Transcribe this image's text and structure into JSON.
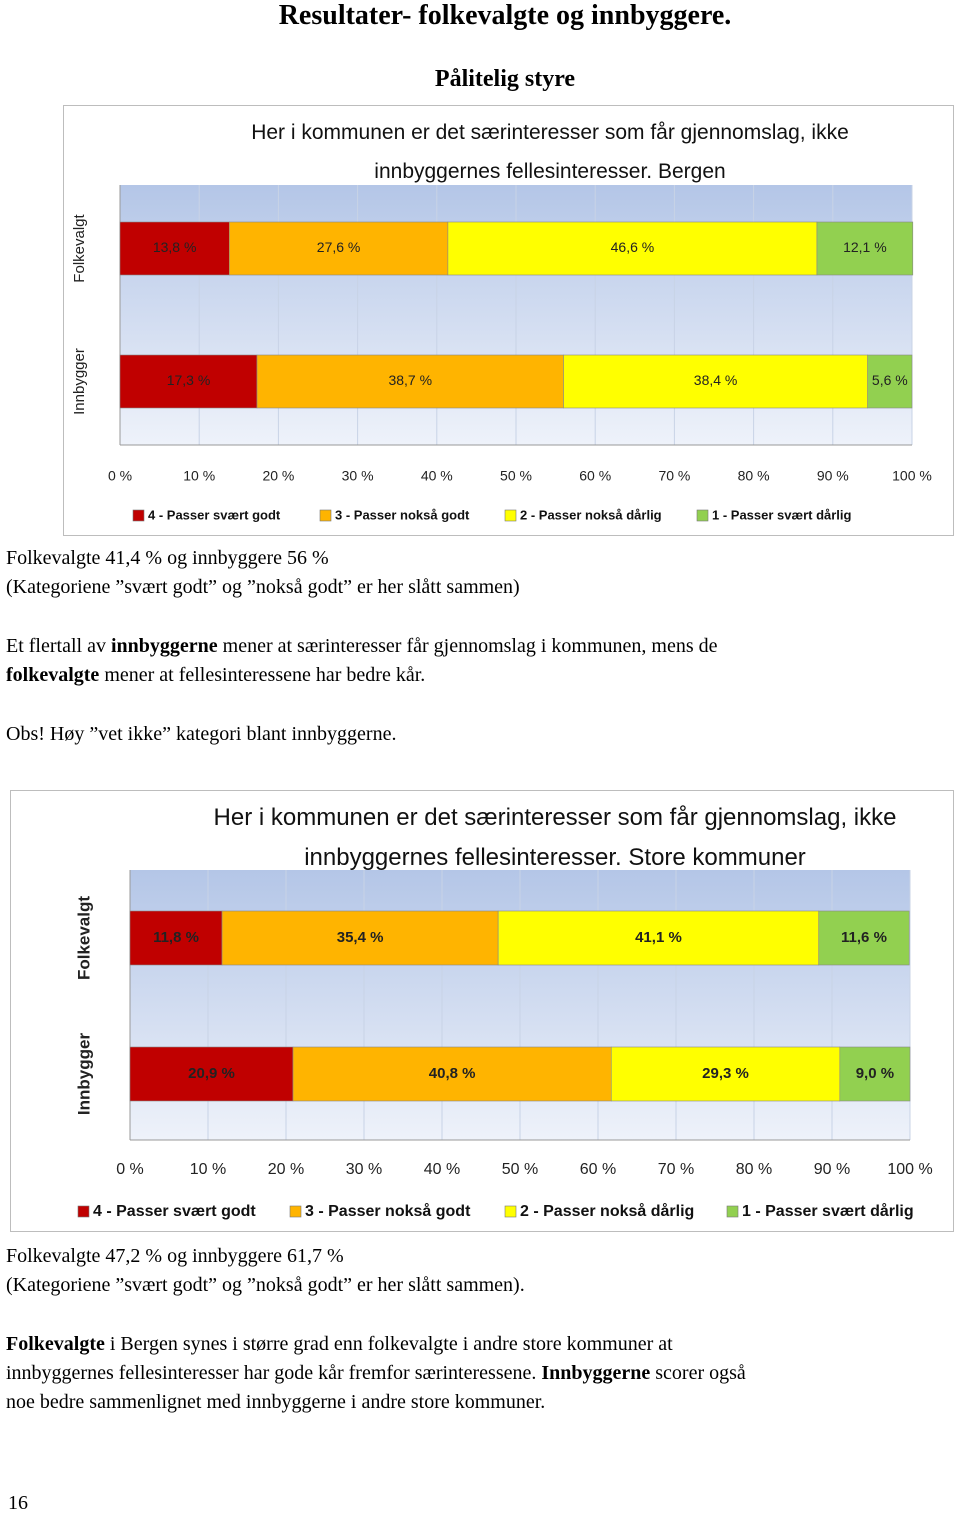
{
  "title": "Resultater- folkevalgte og innbyggere.",
  "subtitle": "Pålitelig styre",
  "chart_data": [
    {
      "type": "bar",
      "orientation": "horizontal",
      "stacked": true,
      "title": "Her i kommunen er det særinteresser som får gjennomslag, ikke innbyggernes fellesinteresser. Bergen",
      "categories": [
        "Folkevalgt",
        "Innbygger"
      ],
      "series": [
        {
          "name": "4 - Passer svært godt",
          "color": "#c00000",
          "values": [
            13.8,
            17.3
          ],
          "value_labels": [
            "13,8 %",
            "17,3 %"
          ]
        },
        {
          "name": "3 - Passer nokså godt",
          "color": "#ffb400",
          "values": [
            27.6,
            38.7
          ],
          "value_labels": [
            "27,6 %",
            "38,7 %"
          ]
        },
        {
          "name": "2 - Passer nokså dårlig",
          "color": "#ffff00",
          "values": [
            46.6,
            38.4
          ],
          "value_labels": [
            "46,6 %",
            "38,4 %"
          ]
        },
        {
          "name": "1 - Passer svært dårlig",
          "color": "#92d050",
          "values": [
            12.1,
            5.6
          ],
          "value_labels": [
            "12,1 %",
            "5,6 %"
          ]
        }
      ],
      "xlim": [
        0,
        100
      ],
      "xticks": [
        {
          "value": 0,
          "label": "0 %"
        },
        {
          "value": 10,
          "label": "10 %"
        },
        {
          "value": 20,
          "label": "20 %"
        },
        {
          "value": 30,
          "label": "30 %"
        },
        {
          "value": 40,
          "label": "40 %"
        },
        {
          "value": 50,
          "label": "50 %"
        },
        {
          "value": 60,
          "label": "60 %"
        },
        {
          "value": 70,
          "label": "70 %"
        },
        {
          "value": 80,
          "label": "80 %"
        },
        {
          "value": 90,
          "label": "90 %"
        },
        {
          "value": 100,
          "label": "100 %"
        }
      ],
      "grid": true,
      "legend": "bottom"
    },
    {
      "type": "bar",
      "orientation": "horizontal",
      "stacked": true,
      "title": "Her i kommunen er det særinteresser som får gjennomslag, ikke innbyggernes fellesinteresser. Store kommuner",
      "categories": [
        "Folkevalgt",
        "Innbygger"
      ],
      "series": [
        {
          "name": "4 - Passer svært godt",
          "color": "#c00000",
          "values": [
            11.8,
            20.9
          ],
          "value_labels": [
            "11,8 %",
            "20,9 %"
          ]
        },
        {
          "name": "3 - Passer nokså godt",
          "color": "#ffb400",
          "values": [
            35.4,
            40.8
          ],
          "value_labels": [
            "35,4 %",
            "40,8 %"
          ]
        },
        {
          "name": "2 - Passer nokså dårlig",
          "color": "#ffff00",
          "values": [
            41.1,
            29.3
          ],
          "value_labels": [
            "41,1 %",
            "29,3 %"
          ]
        },
        {
          "name": "1 - Passer svært dårlig",
          "color": "#92d050",
          "values": [
            11.6,
            9.0
          ],
          "value_labels": [
            "11,6 %",
            "9,0 %"
          ]
        }
      ],
      "xlim": [
        0,
        100
      ],
      "xticks": [
        {
          "value": 0,
          "label": "0 %"
        },
        {
          "value": 10,
          "label": "10 %"
        },
        {
          "value": 20,
          "label": "20 %"
        },
        {
          "value": 30,
          "label": "30 %"
        },
        {
          "value": 40,
          "label": "40 %"
        },
        {
          "value": 50,
          "label": "50 %"
        },
        {
          "value": 60,
          "label": "60 %"
        },
        {
          "value": 70,
          "label": "70 %"
        },
        {
          "value": 80,
          "label": "80 %"
        },
        {
          "value": 90,
          "label": "90 %"
        },
        {
          "value": 100,
          "label": "100 %"
        }
      ],
      "grid": true,
      "legend": "bottom"
    }
  ],
  "notes_1": [
    [
      [
        {
          "text": "Folkevalgte 41,4 % og innbyggere 56 %"
        }
      ],
      [
        {
          "text": "(Kategoriene ”svært godt” og ”nokså godt” er her slått sammen)"
        }
      ]
    ],
    [
      [
        {
          "text": "Et flertall av "
        },
        {
          "text": "innbyggerne",
          "bold": true
        },
        {
          "text": " mener at særinteresser får gjennomslag i kommunen, mens de"
        }
      ],
      [
        {
          "text": "folkevalgte",
          "bold": true
        },
        {
          "text": " mener at fellesinteressene har bedre kår."
        }
      ]
    ],
    [
      [
        {
          "text": "Obs! Høy ”vet ikke” kategori blant innbyggerne."
        }
      ]
    ]
  ],
  "notes_2": [
    [
      [
        {
          "text": "Folkevalgte 47,2 % og innbyggere 61,7 %"
        }
      ],
      [
        {
          "text": "(Kategoriene ”svært godt” og ”nokså godt” er her slått sammen)."
        }
      ]
    ],
    [
      [
        {
          "text": "Folkevalgte",
          "bold": true
        },
        {
          "text": " i Bergen synes i større grad enn folkevalgte i andre store kommuner at"
        }
      ],
      [
        {
          "text": "innbyggernes fellesinteresser har gode kår fremfor særinteressene. "
        },
        {
          "text": "Innbyggerne",
          "bold": true
        },
        {
          "text": " scorer også"
        }
      ],
      [
        {
          "text": "noe bedre sammenlignet med innbyggerne i andre store kommuner."
        }
      ]
    ]
  ],
  "page_number": "16"
}
